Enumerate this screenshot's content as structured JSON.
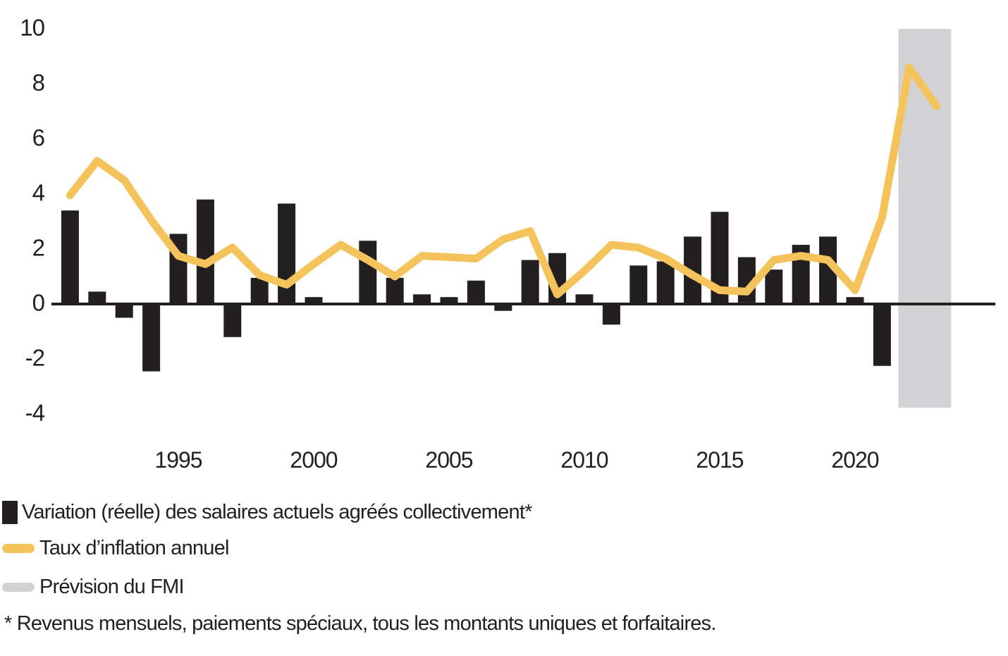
{
  "chart_data": {
    "type": "bar+line",
    "title": "",
    "xlabel": "",
    "ylabel": "",
    "unit": "%",
    "ylim": [
      -4,
      10
    ],
    "yticks": [
      10,
      8,
      6,
      4,
      2,
      0,
      -2,
      -4
    ],
    "xticks": [
      1995,
      2000,
      2005,
      2010,
      2015,
      2020
    ],
    "grid": false,
    "legend_position": "bottom-left",
    "bar_series": {
      "name": "Variation (réelle) des salaires actuels agréés collectivement*",
      "color": "#231F20",
      "years": [
        1991,
        1992,
        1993,
        1994,
        1995,
        1996,
        1997,
        1998,
        1999,
        2000,
        2001,
        2002,
        2003,
        2004,
        2005,
        2006,
        2007,
        2008,
        2009,
        2010,
        2011,
        2012,
        2013,
        2014,
        2015,
        2016,
        2017,
        2018,
        2019,
        2020,
        2021
      ],
      "values": [
        3.35,
        0.4,
        -0.55,
        -2.5,
        2.5,
        3.75,
        -1.25,
        0.9,
        3.6,
        0.2,
        0,
        2.25,
        0.9,
        0.3,
        0.2,
        0.8,
        -0.3,
        1.55,
        1.8,
        0.3,
        -0.8,
        1.35,
        1.5,
        2.4,
        3.3,
        1.65,
        1.2,
        2.1,
        2.4,
        0.2,
        -2.3
      ]
    },
    "line_series": {
      "name": "Taux d’inflation annuel",
      "color": "#F5C35B",
      "years": [
        1991,
        1992,
        1993,
        1994,
        1995,
        1996,
        1997,
        1998,
        1999,
        2000,
        2001,
        2002,
        2003,
        2004,
        2005,
        2006,
        2007,
        2008,
        2009,
        2010,
        2011,
        2012,
        2013,
        2014,
        2015,
        2016,
        2017,
        2018,
        2019,
        2020,
        2021,
        2022,
        2023
      ],
      "values": [
        3.9,
        5.15,
        4.45,
        3.0,
        1.7,
        1.4,
        2.0,
        1.0,
        0.65,
        1.4,
        2.1,
        1.55,
        0.95,
        1.7,
        1.65,
        1.6,
        2.3,
        2.6,
        0.3,
        1.15,
        2.1,
        2.0,
        1.6,
        1.0,
        0.45,
        0.4,
        1.55,
        1.7,
        1.55,
        0.45,
        3.1,
        8.55,
        7.15
      ]
    },
    "forecast_band": {
      "name": "Prévision du FMI",
      "color": "#D2D2D4",
      "start_year": 2021.6,
      "end_year": 2023.55,
      "y_top": 9.95,
      "y_bottom": -3.82
    }
  },
  "legend": {
    "items": [
      {
        "swatch": "black-square",
        "label": "Variation (réelle) des salaires actuels agréés collectivement*"
      },
      {
        "swatch": "yellow-line",
        "label": "Taux d’inflation annuel"
      },
      {
        "swatch": "gray-line",
        "label": "Prévision du FMI"
      }
    ]
  },
  "footnote": "* Revenus mensuels, paiements spéciaux, tous les montants uniques et forfaitaires."
}
